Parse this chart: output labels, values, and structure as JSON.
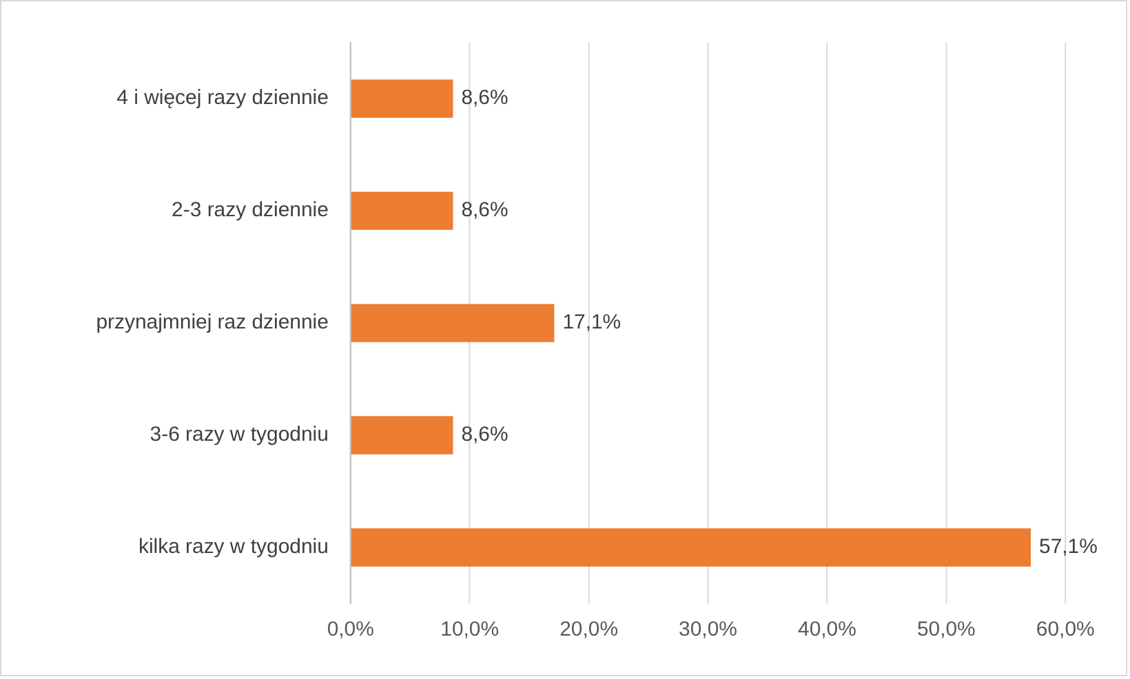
{
  "chart_data": {
    "type": "bar",
    "orientation": "horizontal",
    "categories": [
      "4 i więcej razy dziennie",
      "2-3 razy dziennie",
      "przynajmniej raz dziennie",
      "3-6 razy w tygodniu",
      "kilka razy w tygodniu"
    ],
    "values": [
      8.6,
      8.6,
      17.1,
      8.6,
      57.1
    ],
    "value_labels": [
      "8,6%",
      "8,6%",
      "17,1%",
      "8,6%",
      "57,1%"
    ],
    "color": "#ed7d31",
    "xlim": [
      0,
      60
    ],
    "xticks": [
      {
        "value": 0,
        "label": "0,0%"
      },
      {
        "value": 10,
        "label": "10,0%"
      },
      {
        "value": 20,
        "label": "20,0%"
      },
      {
        "value": 30,
        "label": "30,0%"
      },
      {
        "value": 40,
        "label": "40,0%"
      },
      {
        "value": 50,
        "label": "50,0%"
      },
      {
        "value": 60,
        "label": "60,0%"
      }
    ],
    "grid": "x",
    "legend": false
  }
}
